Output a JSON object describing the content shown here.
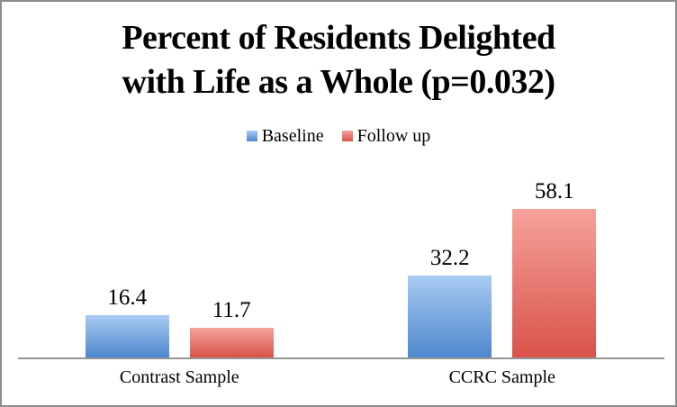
{
  "window": {
    "background_color": "#ffffff",
    "border_color": "#8c8c8c"
  },
  "chart_data": {
    "type": "bar",
    "title": "Percent of Residents Delighted with Life as a Whole (p=0.032)",
    "title_lines": [
      "Percent of Residents Delighted",
      "with Life as a Whole (p=0.032)"
    ],
    "categories": [
      "Contrast Sample",
      "CCRC Sample"
    ],
    "series": [
      {
        "name": "Baseline",
        "color": "#6fa3dc",
        "gradient_top": "#a9cbf2",
        "gradient_bottom": "#4e87ce",
        "values": [
          16.4,
          32.2
        ]
      },
      {
        "name": "Follow up",
        "color": "#e0736c",
        "gradient_top": "#f5a29b",
        "gradient_bottom": "#d9534a",
        "values": [
          11.7,
          58.1
        ]
      }
    ],
    "ylim": [
      0,
      70
    ],
    "grid": false,
    "legend_position": "top-center",
    "axis_line_color": "#969696",
    "data_labels_shown": true
  }
}
